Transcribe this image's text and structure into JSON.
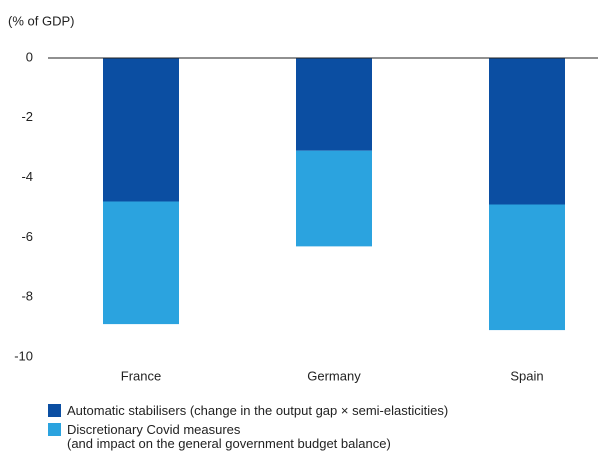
{
  "chart_data": {
    "type": "stacked_bar",
    "subtitle": "(% of GDP)",
    "categories": [
      "France",
      "Germany",
      "Spain"
    ],
    "series": [
      {
        "name": "Automatic stabilisers (change in the output gap × semi-elasticities)",
        "color": "#0b4ea2",
        "values": [
          -4.8,
          -3.1,
          -4.9
        ]
      },
      {
        "name": "Discretionary Covid measures\n(and impact on the general government budget balance)",
        "color": "#2ba3df",
        "values": [
          -4.1,
          -3.2,
          -4.2
        ]
      }
    ],
    "ylim": [
      -10,
      0
    ],
    "yticks": [
      0,
      -2,
      -4,
      -6,
      -8,
      -10
    ]
  }
}
